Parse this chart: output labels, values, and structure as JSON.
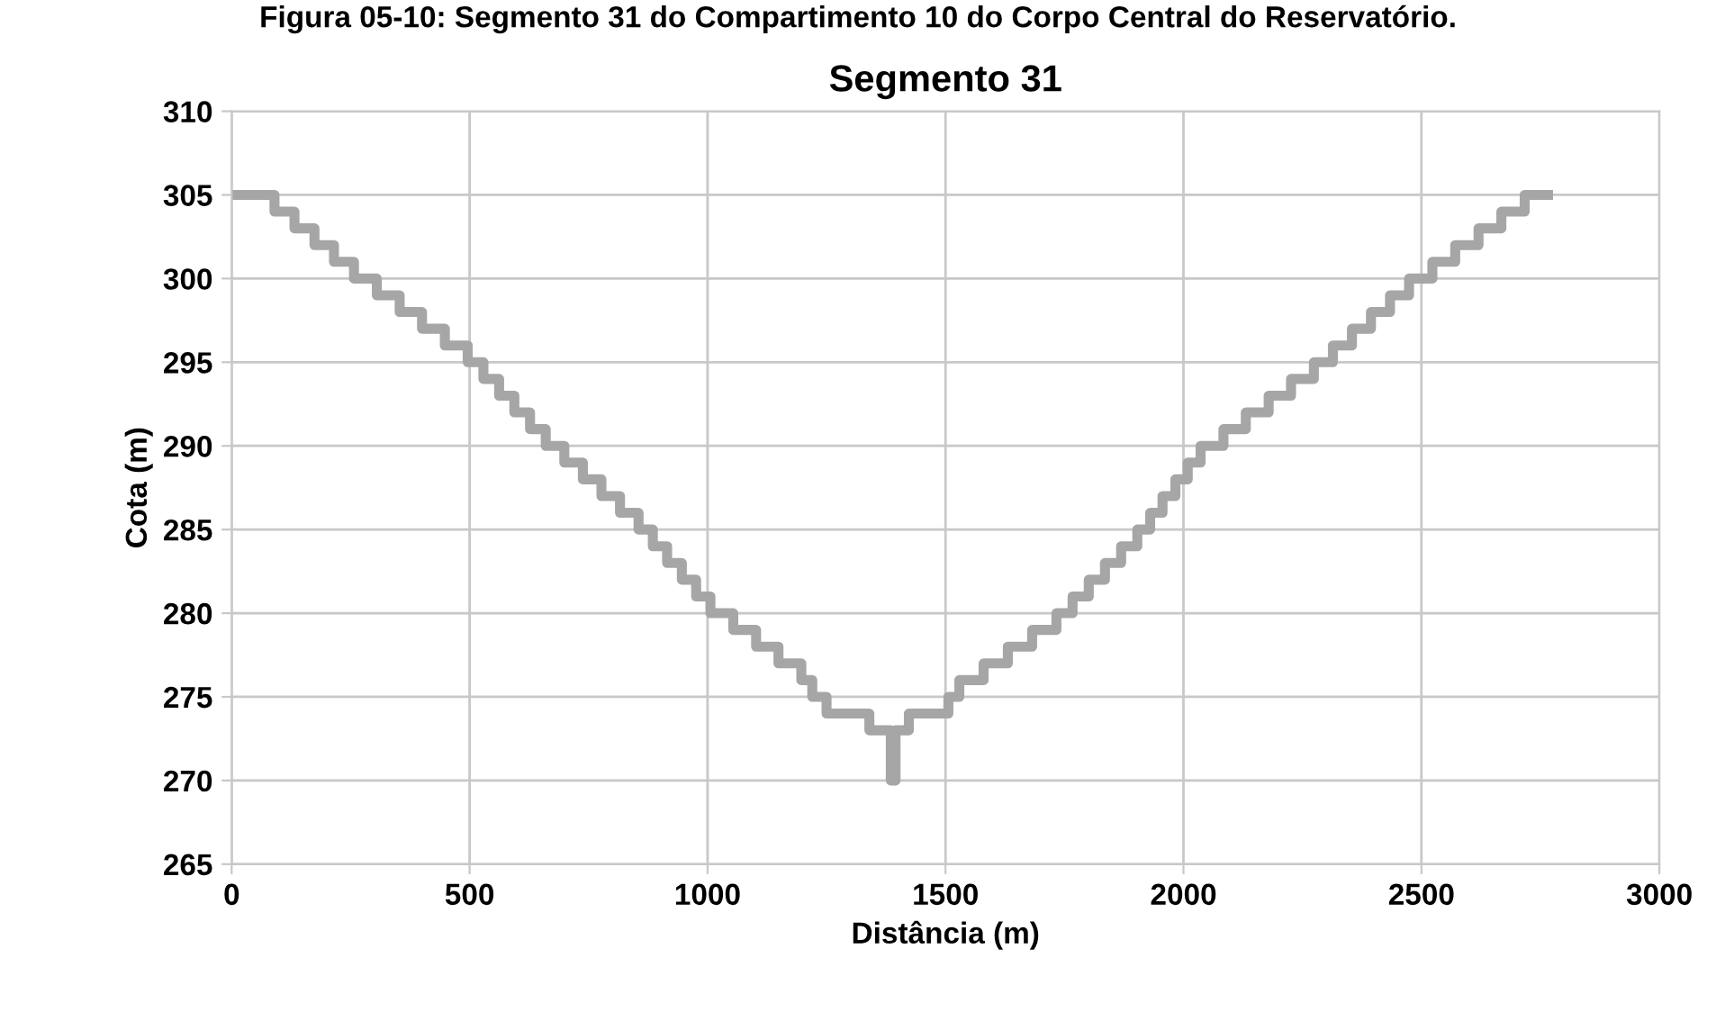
{
  "chart_data": {
    "type": "step",
    "title": "Segmento 31",
    "annotations": [
      "Figura 05-10: Segmento 31 do Compartimento 10 do Corpo Central do Reservatório."
    ],
    "xlabel": "Distância (m)",
    "ylabel": "Cota (m)",
    "series": [
      {
        "color": "#a6a6a6",
        "x": [
          0,
          90,
          132,
          174,
          215,
          257,
          305,
          353,
          400,
          448,
          496,
          529,
          562,
          594,
          627,
          660,
          699,
          738,
          777,
          816,
          855,
          885,
          915,
          946,
          976,
          1006,
          1054,
          1102,
          1149,
          1197,
          1220,
          1250,
          1340,
          1385,
          1395,
          1423,
          1506,
          1529,
          1580,
          1631,
          1682,
          1733,
          1767,
          1801,
          1835,
          1869,
          1903,
          1930,
          1956,
          1983,
          2009,
          2036,
          2084,
          2131,
          2179,
          2226,
          2274,
          2314,
          2354,
          2394,
          2434,
          2474,
          2523,
          2571,
          2620,
          2668,
          2717,
          2766
        ],
        "values": [
          305,
          304,
          303,
          302,
          301,
          300,
          299,
          298,
          297,
          296,
          295,
          294,
          293,
          292,
          291,
          290,
          289,
          288,
          287,
          286,
          285,
          284,
          283,
          282,
          281,
          280,
          279,
          278,
          277,
          276,
          275,
          274,
          273,
          270,
          273,
          274,
          275,
          276,
          277,
          278,
          279,
          280,
          281,
          282,
          283,
          284,
          285,
          286,
          287,
          288,
          289,
          290,
          291,
          292,
          293,
          294,
          295,
          296,
          297,
          298,
          299,
          300,
          301,
          302,
          303,
          304,
          305,
          305
        ]
      }
    ],
    "xlim": [
      0,
      3000
    ],
    "xticks": [
      0,
      500,
      1000,
      1500,
      2000,
      2500,
      3000
    ],
    "ylim": [
      265,
      310
    ],
    "yticks": [
      265,
      270,
      275,
      280,
      285,
      290,
      295,
      300,
      305,
      310
    ],
    "grid": true
  }
}
